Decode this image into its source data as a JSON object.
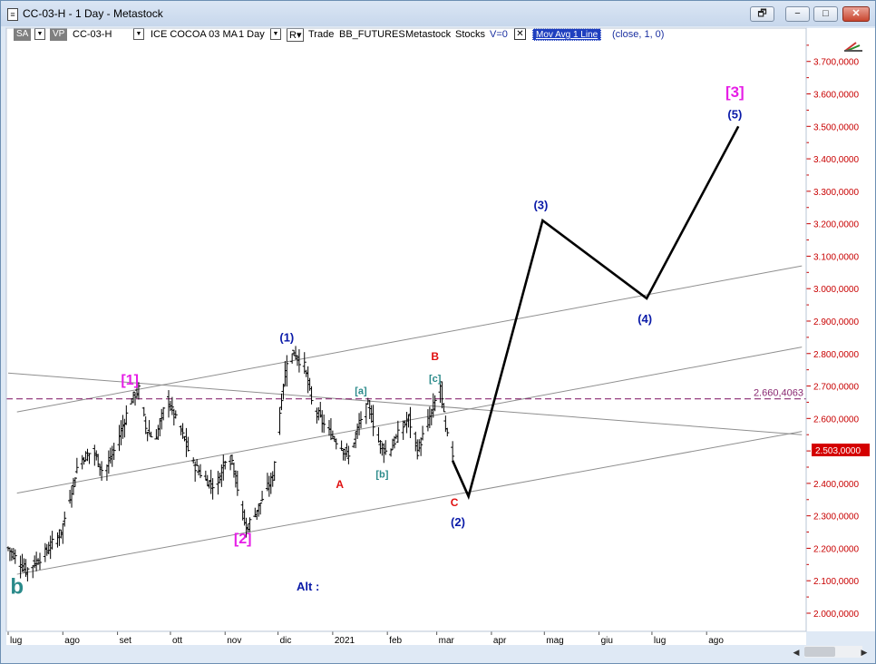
{
  "window": {
    "title": "CC-03-H - 1 Day - Metastock",
    "buttons": {
      "restore": "🗗",
      "minimize": "−",
      "maximize": "□",
      "close": "✕"
    }
  },
  "toolbar": {
    "sa": "SA",
    "vp": "VP",
    "symbol": "CC-03-H",
    "name": "ICE COCOA 03 MA",
    "period": "1 Day",
    "r": "R",
    "mode": "Trade",
    "source": "BB_FUTURES",
    "app": "Metastock",
    "type": "Stocks",
    "volume": "V=0",
    "close_x": "✕",
    "indicator": "Mov Avg 1 Line",
    "params": "(close,  1,  0)"
  },
  "colors": {
    "background": "#ffffff",
    "price": "#000000",
    "trend_line": "#8f8f8f",
    "scale_text": "#c80000",
    "magenta": "#e61ee6",
    "navy": "#0a1aa8",
    "red": "#e01010",
    "teal": "#2a8a8a",
    "dashed_level": "#8a2a72",
    "last_price_bg": "#d40000",
    "window_frame": "#dfe9f5"
  },
  "chart_data": {
    "type": "ohlc",
    "title": "",
    "x_axis_labels": [
      "lug",
      "ago",
      "set",
      "ott",
      "nov",
      "dic",
      "2021",
      "feb",
      "mar",
      "apr",
      "mag",
      "giu",
      "lug",
      "ago"
    ],
    "y_axis": {
      "min": 2000,
      "max": 3800,
      "labels": [
        "2.000,0000",
        "2.100,0000",
        "2.200,0000",
        "2.300,0000",
        "2.400,0000",
        "2.500,0000",
        "2.600,0000",
        "2.700,0000",
        "2.800,0000",
        "2.900,0000",
        "3.000,0000",
        "3.100,0000",
        "3.200,0000",
        "3.300,0000",
        "3.400,0000",
        "3.500,0000",
        "3.600,0000",
        "3.700,0000"
      ]
    },
    "horizontal_level": {
      "value": 2660.4063,
      "label": "2.660,4063"
    },
    "last_price": {
      "value": 2503,
      "label": "2.503,0000"
    },
    "price_path": [
      {
        "d": 0,
        "p": 2200
      },
      {
        "d": 10,
        "p": 2130
      },
      {
        "d": 20,
        "p": 2180
      },
      {
        "d": 30,
        "p": 2250
      },
      {
        "d": 40,
        "p": 2470
      },
      {
        "d": 48,
        "p": 2500
      },
      {
        "d": 54,
        "p": 2430
      },
      {
        "d": 60,
        "p": 2500
      },
      {
        "d": 70,
        "p": 2660
      },
      {
        "d": 74,
        "p": 2690
      },
      {
        "d": 78,
        "p": 2570
      },
      {
        "d": 83,
        "p": 2530
      },
      {
        "d": 90,
        "p": 2660
      },
      {
        "d": 98,
        "p": 2560
      },
      {
        "d": 105,
        "p": 2460
      },
      {
        "d": 112,
        "p": 2410
      },
      {
        "d": 118,
        "p": 2390
      },
      {
        "d": 123,
        "p": 2480
      },
      {
        "d": 127,
        "p": 2470
      },
      {
        "d": 133,
        "p": 2300
      },
      {
        "d": 135,
        "p": 2260
      },
      {
        "d": 142,
        "p": 2330
      },
      {
        "d": 150,
        "p": 2420
      },
      {
        "d": 155,
        "p": 2670
      },
      {
        "d": 158,
        "p": 2780
      },
      {
        "d": 162,
        "p": 2800
      },
      {
        "d": 168,
        "p": 2760
      },
      {
        "d": 172,
        "p": 2650
      },
      {
        "d": 180,
        "p": 2570
      },
      {
        "d": 188,
        "p": 2520
      },
      {
        "d": 193,
        "p": 2480
      },
      {
        "d": 200,
        "p": 2600
      },
      {
        "d": 204,
        "p": 2640
      },
      {
        "d": 210,
        "p": 2530
      },
      {
        "d": 215,
        "p": 2490
      },
      {
        "d": 222,
        "p": 2560
      },
      {
        "d": 227,
        "p": 2600
      },
      {
        "d": 232,
        "p": 2500
      },
      {
        "d": 240,
        "p": 2620
      },
      {
        "d": 245,
        "p": 2700
      },
      {
        "d": 248,
        "p": 2560
      },
      {
        "d": 252,
        "p": 2490
      }
    ],
    "projection": [
      {
        "d": 252,
        "p": 2470
      },
      {
        "d": 261,
        "p": 2360
      },
      {
        "d": 303,
        "p": 3210
      },
      {
        "d": 362,
        "p": 2970
      },
      {
        "d": 414,
        "p": 3500
      }
    ],
    "channel_lines": [
      {
        "p1": [
          5,
          2620
        ],
        "p2": [
          450,
          3070
        ]
      },
      {
        "p1": [
          5,
          2370
        ],
        "p2": [
          450,
          2820
        ]
      },
      {
        "p1": [
          5,
          2120
        ],
        "p2": [
          450,
          2560
        ]
      },
      {
        "p1": [
          0,
          2740
        ],
        "p2": [
          450,
          2550
        ]
      }
    ],
    "wave_labels": [
      {
        "text": "b",
        "d": 5,
        "p": 2060,
        "color": "teal",
        "size": 24
      },
      {
        "text": "[1]",
        "d": 69,
        "p": 2705,
        "color": "magenta",
        "size": 16
      },
      {
        "text": "[2]",
        "d": 133,
        "p": 2215,
        "color": "magenta",
        "size": 16
      },
      {
        "text": "(1)",
        "d": 158,
        "p": 2837,
        "color": "navy",
        "size": 13
      },
      {
        "text": "[a]",
        "d": 200,
        "p": 2675,
        "color": "teal",
        "size": 11
      },
      {
        "text": "A",
        "d": 188,
        "p": 2385,
        "color": "red",
        "size": 12
      },
      {
        "text": "[b]",
        "d": 212,
        "p": 2418,
        "color": "teal",
        "size": 11
      },
      {
        "text": "B",
        "d": 242,
        "p": 2780,
        "color": "red",
        "size": 12
      },
      {
        "text": "[c]",
        "d": 242,
        "p": 2712,
        "color": "teal",
        "size": 11
      },
      {
        "text": "C",
        "d": 253,
        "p": 2330,
        "color": "red",
        "size": 12
      },
      {
        "text": "(2)",
        "d": 255,
        "p": 2268,
        "color": "navy",
        "size": 13
      },
      {
        "text": "(3)",
        "d": 302,
        "p": 3245,
        "color": "navy",
        "size": 13
      },
      {
        "text": "(4)",
        "d": 361,
        "p": 2895,
        "color": "navy",
        "size": 13
      },
      {
        "text": "[3]",
        "d": 412,
        "p": 3590,
        "color": "magenta",
        "size": 17
      },
      {
        "text": "(5)",
        "d": 412,
        "p": 3525,
        "color": "navy",
        "size": 13
      },
      {
        "text": "Alt :",
        "d": 170,
        "p": 2070,
        "color": "navy",
        "size": 13
      }
    ],
    "grid": false,
    "legend": "none"
  }
}
